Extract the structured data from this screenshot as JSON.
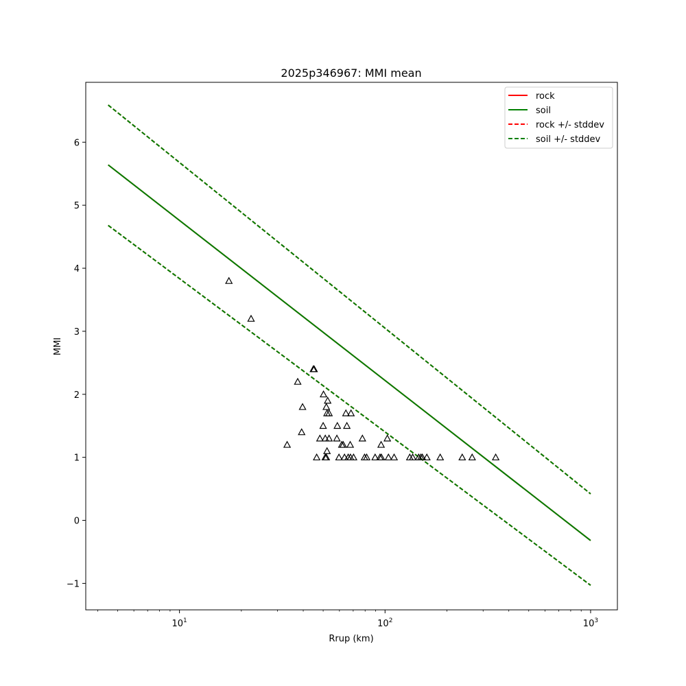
{
  "chart_data": {
    "type": "line",
    "title": "2025p346967: MMI mean",
    "xlabel": "Rrup (km)",
    "ylabel": "MMI",
    "xscale": "log",
    "xlim": [
      3.5,
      1350
    ],
    "ylim": [
      -1.42,
      6.95
    ],
    "xticks": [
      {
        "value": 10,
        "base": "10",
        "exp": "1"
      },
      {
        "value": 100,
        "base": "10",
        "exp": "2"
      },
      {
        "value": 1000,
        "base": "10",
        "exp": "3"
      }
    ],
    "yticks": [
      {
        "value": -1,
        "label": "−1"
      },
      {
        "value": 0,
        "label": "0"
      },
      {
        "value": 1,
        "label": "1"
      },
      {
        "value": 2,
        "label": "2"
      },
      {
        "value": 3,
        "label": "3"
      },
      {
        "value": 4,
        "label": "4"
      },
      {
        "value": 5,
        "label": "5"
      },
      {
        "value": 6,
        "label": "6"
      }
    ],
    "grid": false,
    "legend_position": "top-right",
    "series": [
      {
        "name": "rock",
        "style": "solid",
        "color": "#ff0000",
        "x": [
          4.5,
          1000
        ],
        "y": [
          5.64,
          -0.32
        ]
      },
      {
        "name": "soil",
        "style": "solid",
        "color": "#008000",
        "x": [
          4.5,
          1000
        ],
        "y": [
          5.64,
          -0.32
        ]
      },
      {
        "name": "rock +/- stddev",
        "style": "dashed",
        "color": "#ff0000",
        "x": [
          4.5,
          1000
        ],
        "y_upper": [
          6.59,
          0.42
        ],
        "y_lower": [
          4.68,
          -1.03
        ]
      },
      {
        "name": "soil +/- stddev",
        "style": "dashed",
        "color": "#008000",
        "x": [
          4.5,
          1000
        ],
        "y_upper": [
          6.59,
          0.42
        ],
        "y_lower": [
          4.68,
          -1.03
        ]
      }
    ],
    "observations": {
      "marker": "triangle",
      "points": [
        [
          17.4,
          3.8
        ],
        [
          22.3,
          3.2
        ],
        [
          44.8,
          2.4
        ],
        [
          45.2,
          2.4
        ],
        [
          37.6,
          2.2
        ],
        [
          50.2,
          2.0
        ],
        [
          52.6,
          1.9
        ],
        [
          51.8,
          1.8
        ],
        [
          39.7,
          1.8
        ],
        [
          52.2,
          1.7
        ],
        [
          53.4,
          1.7
        ],
        [
          64.5,
          1.7
        ],
        [
          68.3,
          1.7
        ],
        [
          50.0,
          1.5
        ],
        [
          58.6,
          1.5
        ],
        [
          65.2,
          1.5
        ],
        [
          39.3,
          1.4
        ],
        [
          48.2,
          1.3
        ],
        [
          51.2,
          1.3
        ],
        [
          53.4,
          1.3
        ],
        [
          58.3,
          1.3
        ],
        [
          77.6,
          1.3
        ],
        [
          102.6,
          1.3
        ],
        [
          33.4,
          1.2
        ],
        [
          61.6,
          1.2
        ],
        [
          62.6,
          1.2
        ],
        [
          67.7,
          1.2
        ],
        [
          95.7,
          1.2
        ],
        [
          52.2,
          1.1
        ],
        [
          46.5,
          1.0
        ],
        [
          51.2,
          1.0
        ],
        [
          51.8,
          1.0
        ],
        [
          59.7,
          1.0
        ],
        [
          63.5,
          1.0
        ],
        [
          66.2,
          1.0
        ],
        [
          67.9,
          1.0
        ],
        [
          70.3,
          1.0
        ],
        [
          79.5,
          1.0
        ],
        [
          81.4,
          1.0
        ],
        [
          89.5,
          1.0
        ],
        [
          94.5,
          1.0
        ],
        [
          96.0,
          1.0
        ],
        [
          103.9,
          1.0
        ],
        [
          110.7,
          1.0
        ],
        [
          131.9,
          1.0
        ],
        [
          136.3,
          1.0
        ],
        [
          145.8,
          1.0
        ],
        [
          149.4,
          1.0
        ],
        [
          151.9,
          1.0
        ],
        [
          159.7,
          1.0
        ],
        [
          185.5,
          1.0
        ],
        [
          237.4,
          1.0
        ],
        [
          265.3,
          1.0
        ],
        [
          345.4,
          1.0
        ]
      ]
    }
  }
}
